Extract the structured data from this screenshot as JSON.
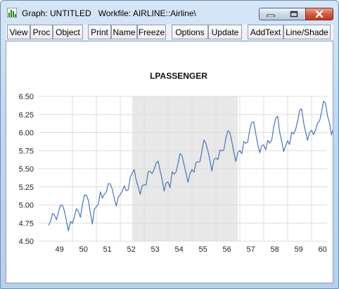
{
  "window": {
    "title": "Graph: UNTITLED   Workfile: AIRLINE::Airline\\",
    "icon": "bar-chart-icon"
  },
  "toolbar": {
    "buttons": [
      "View",
      "Proc",
      "Object",
      "Print",
      "Name",
      "Freeze",
      "Options",
      "Update",
      "AddText",
      "Line/Shade"
    ]
  },
  "colors": {
    "line": "#4a74b8",
    "shade": "#e8e8e8",
    "grid": "#dcdcdc"
  },
  "chart_data": {
    "type": "line",
    "title": "LPASSENGER",
    "xlabel": "",
    "ylabel": "",
    "x_tick_labels": [
      "49",
      "50",
      "51",
      "52",
      "53",
      "54",
      "55",
      "56",
      "57",
      "58",
      "59",
      "60"
    ],
    "y_tick_labels": [
      "4.50",
      "4.75",
      "5.00",
      "5.25",
      "5.50",
      "5.75",
      "6.00",
      "6.25",
      "6.50"
    ],
    "ylim": [
      4.5,
      6.5
    ],
    "x_start": "1949-01",
    "frequency": "monthly",
    "shaded_period": [
      "1952-07",
      "1956-12"
    ],
    "grid": "horizontal and vertical, light gray",
    "series": [
      {
        "values": [
          4.718,
          4.771,
          4.883,
          4.86,
          4.796,
          4.905,
          4.997,
          4.997,
          4.913,
          4.779,
          4.644,
          4.771,
          4.745,
          4.836,
          4.949,
          4.906,
          4.83,
          5.004,
          5.136,
          5.136,
          5.063,
          4.89,
          4.736,
          4.942,
          4.977,
          5.011,
          5.182,
          5.094,
          5.147,
          5.182,
          5.293,
          5.293,
          5.215,
          5.088,
          4.984,
          5.112,
          5.142,
          5.193,
          5.263,
          5.199,
          5.209,
          5.385,
          5.438,
          5.489,
          5.342,
          5.252,
          5.147,
          5.268,
          5.278,
          5.278,
          5.464,
          5.46,
          5.434,
          5.493,
          5.576,
          5.606,
          5.468,
          5.352,
          5.193,
          5.303,
          5.318,
          5.236,
          5.46,
          5.425,
          5.455,
          5.576,
          5.71,
          5.68,
          5.557,
          5.434,
          5.313,
          5.434,
          5.489,
          5.451,
          5.587,
          5.595,
          5.598,
          5.753,
          5.897,
          5.849,
          5.744,
          5.613,
          5.468,
          5.628,
          5.649,
          5.624,
          5.759,
          5.746,
          5.762,
          5.924,
          6.023,
          6.004,
          5.872,
          5.724,
          5.602,
          5.724,
          5.753,
          5.707,
          5.875,
          5.852,
          5.872,
          6.045,
          6.142,
          6.146,
          5.981,
          5.838,
          5.72,
          5.817,
          5.829,
          5.762,
          5.892,
          5.852,
          5.894,
          6.075,
          6.196,
          6.225,
          6.001,
          5.883,
          5.737,
          5.82,
          5.886,
          5.835,
          6.006,
          5.981,
          6.041,
          6.157,
          6.306,
          6.326,
          6.138,
          6.009,
          5.892,
          6.004,
          6.033,
          5.969,
          6.038,
          6.133,
          6.157,
          6.282,
          6.433,
          6.407,
          6.23,
          6.133,
          5.966,
          6.068
        ]
      }
    ]
  }
}
